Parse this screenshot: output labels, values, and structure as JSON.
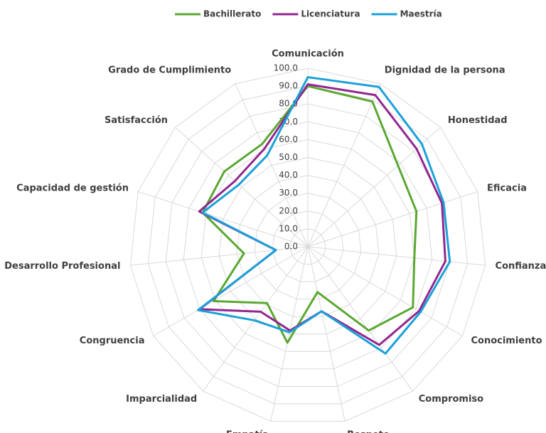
{
  "chart_data": {
    "type": "radar",
    "categories": [
      "Comunicación",
      "Dignidad de la persona",
      "Honestidad",
      "Eficacia",
      "Confianza",
      "Conocimiento",
      "Compromiso",
      "Respeto",
      "Empatía",
      "Imparcialidad",
      "Congruencia",
      "Desarrollo Profesional",
      "Capacidad de gestión",
      "Satisfacción",
      "Grado de Cumplimiento"
    ],
    "series": [
      {
        "name": "Bachillerato",
        "color": "#5aa832",
        "values": [
          90,
          89,
          68,
          64,
          60,
          68,
          58,
          26,
          55,
          39,
          61,
          36,
          62,
          63,
          63
        ]
      },
      {
        "name": "Licenciatura",
        "color": "#92278f",
        "values": [
          91,
          93,
          82,
          79,
          77.5,
          72,
          68,
          37,
          48,
          45,
          70,
          18,
          64,
          55,
          60
        ]
      },
      {
        "name": "Maestría",
        "color": "#1ba1d8",
        "values": [
          95,
          98,
          86,
          80,
          80,
          73,
          74,
          37,
          49,
          51,
          71,
          18,
          62,
          52,
          56
        ]
      }
    ],
    "ylim": [
      0,
      100
    ],
    "yticks": [
      {
        "value": 0,
        "label": "0.0"
      },
      {
        "value": 10,
        "label": "10.0"
      },
      {
        "value": 20,
        "label": "20.0"
      },
      {
        "value": 30,
        "label": "30.0"
      },
      {
        "value": 40,
        "label": "40.0"
      },
      {
        "value": 50,
        "label": "50.0"
      },
      {
        "value": 60,
        "label": "60.0"
      },
      {
        "value": 70,
        "label": "70.0"
      },
      {
        "value": 80,
        "label": "80.0"
      },
      {
        "value": 90,
        "label": "90.0"
      },
      {
        "value": 100,
        "label": "100.0"
      }
    ],
    "grid": true,
    "legend": "top"
  }
}
